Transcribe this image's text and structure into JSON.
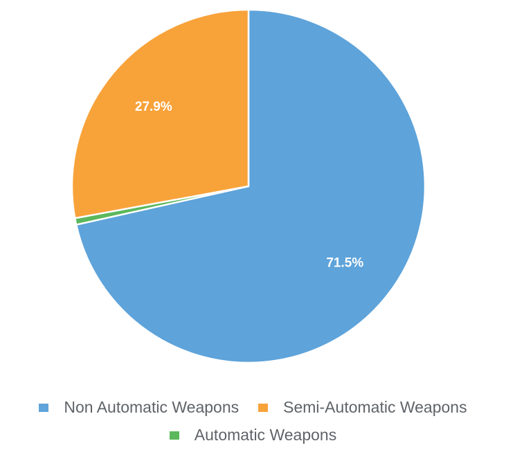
{
  "chart_data": {
    "type": "pie",
    "title": "",
    "slices": [
      {
        "name": "Non Automatic Weapons",
        "value": 71.5,
        "label": "71.5%",
        "color": "#5ea3da"
      },
      {
        "name": "Automatic Weapons",
        "value": 0.6,
        "label": "",
        "color": "#5cb85c"
      },
      {
        "name": "Semi-Automatic Weapons",
        "value": 27.9,
        "label": "27.9%",
        "color": "#f8a23a"
      }
    ],
    "legend_position": "bottom",
    "legend": [
      {
        "label": "Non Automatic Weapons",
        "color": "#5ea3da"
      },
      {
        "label": "Semi-Automatic Weapons",
        "color": "#f8a23a"
      },
      {
        "label": "Automatic Weapons",
        "color": "#5cb85c"
      }
    ]
  }
}
